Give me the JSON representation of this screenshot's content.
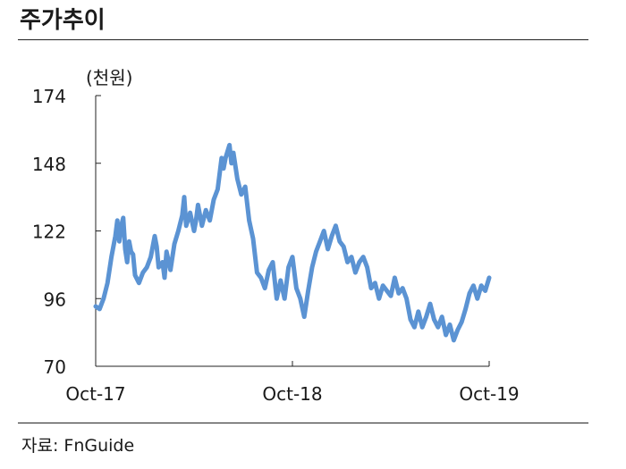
{
  "header": {
    "title": "주가추이"
  },
  "footer": {
    "source": "자료: FnGuide"
  },
  "chart_data": {
    "type": "line",
    "title": "주가추이",
    "ylabel": "(천원)",
    "xlabel": "",
    "ylim": [
      70,
      174
    ],
    "yticks": [
      70,
      96,
      122,
      148,
      174
    ],
    "xtick_labels": [
      "Oct-17",
      "Oct-18",
      "Oct-19"
    ],
    "xtick_positions": [
      0,
      0.5,
      1.0
    ],
    "grid": false,
    "line_color": "#5b93d3",
    "series": [
      {
        "name": "",
        "points": [
          [
            0.0,
            93
          ],
          [
            0.01,
            92
          ],
          [
            0.02,
            96
          ],
          [
            0.03,
            102
          ],
          [
            0.04,
            112
          ],
          [
            0.05,
            120
          ],
          [
            0.055,
            126
          ],
          [
            0.06,
            118
          ],
          [
            0.065,
            124
          ],
          [
            0.07,
            127
          ],
          [
            0.075,
            115
          ],
          [
            0.08,
            110
          ],
          [
            0.085,
            118
          ],
          [
            0.09,
            114
          ],
          [
            0.095,
            113
          ],
          [
            0.1,
            105
          ],
          [
            0.11,
            102
          ],
          [
            0.12,
            106
          ],
          [
            0.13,
            108
          ],
          [
            0.14,
            112
          ],
          [
            0.15,
            120
          ],
          [
            0.155,
            116
          ],
          [
            0.16,
            108
          ],
          [
            0.17,
            110
          ],
          [
            0.175,
            104
          ],
          [
            0.18,
            114
          ],
          [
            0.19,
            107
          ],
          [
            0.2,
            117
          ],
          [
            0.21,
            122
          ],
          [
            0.22,
            128
          ],
          [
            0.225,
            135
          ],
          [
            0.23,
            124
          ],
          [
            0.24,
            129
          ],
          [
            0.25,
            122
          ],
          [
            0.255,
            126
          ],
          [
            0.26,
            132
          ],
          [
            0.27,
            124
          ],
          [
            0.28,
            130
          ],
          [
            0.29,
            126
          ],
          [
            0.3,
            134
          ],
          [
            0.31,
            138
          ],
          [
            0.32,
            150
          ],
          [
            0.325,
            146
          ],
          [
            0.33,
            150
          ],
          [
            0.34,
            155
          ],
          [
            0.345,
            148
          ],
          [
            0.35,
            152
          ],
          [
            0.36,
            142
          ],
          [
            0.37,
            136
          ],
          [
            0.38,
            139
          ],
          [
            0.39,
            126
          ],
          [
            0.4,
            119
          ],
          [
            0.41,
            106
          ],
          [
            0.42,
            104
          ],
          [
            0.43,
            100
          ],
          [
            0.44,
            107
          ],
          [
            0.45,
            110
          ],
          [
            0.46,
            96
          ],
          [
            0.47,
            103
          ],
          [
            0.48,
            96
          ],
          [
            0.49,
            108
          ],
          [
            0.5,
            112
          ],
          [
            0.51,
            100
          ],
          [
            0.52,
            96
          ],
          [
            0.53,
            89
          ],
          [
            0.54,
            99
          ],
          [
            0.55,
            108
          ],
          [
            0.56,
            114
          ],
          [
            0.57,
            118
          ],
          [
            0.58,
            122
          ],
          [
            0.59,
            115
          ],
          [
            0.6,
            120
          ],
          [
            0.61,
            124
          ],
          [
            0.62,
            118
          ],
          [
            0.63,
            116
          ],
          [
            0.64,
            110
          ],
          [
            0.65,
            112
          ],
          [
            0.66,
            106
          ],
          [
            0.67,
            110
          ],
          [
            0.68,
            112
          ],
          [
            0.69,
            108
          ],
          [
            0.7,
            100
          ],
          [
            0.71,
            102
          ],
          [
            0.72,
            96
          ],
          [
            0.73,
            101
          ],
          [
            0.74,
            99
          ],
          [
            0.75,
            97
          ],
          [
            0.76,
            104
          ],
          [
            0.77,
            98
          ],
          [
            0.78,
            100
          ],
          [
            0.79,
            96
          ],
          [
            0.8,
            88
          ],
          [
            0.81,
            85
          ],
          [
            0.82,
            91
          ],
          [
            0.83,
            85
          ],
          [
            0.84,
            89
          ],
          [
            0.85,
            94
          ],
          [
            0.86,
            88
          ],
          [
            0.87,
            85
          ],
          [
            0.88,
            89
          ],
          [
            0.89,
            82
          ],
          [
            0.9,
            86
          ],
          [
            0.91,
            80
          ],
          [
            0.92,
            84
          ],
          [
            0.93,
            87
          ],
          [
            0.94,
            92
          ],
          [
            0.95,
            98
          ],
          [
            0.96,
            101
          ],
          [
            0.97,
            96
          ],
          [
            0.98,
            101
          ],
          [
            0.99,
            99
          ],
          [
            1.0,
            104
          ]
        ]
      }
    ]
  }
}
